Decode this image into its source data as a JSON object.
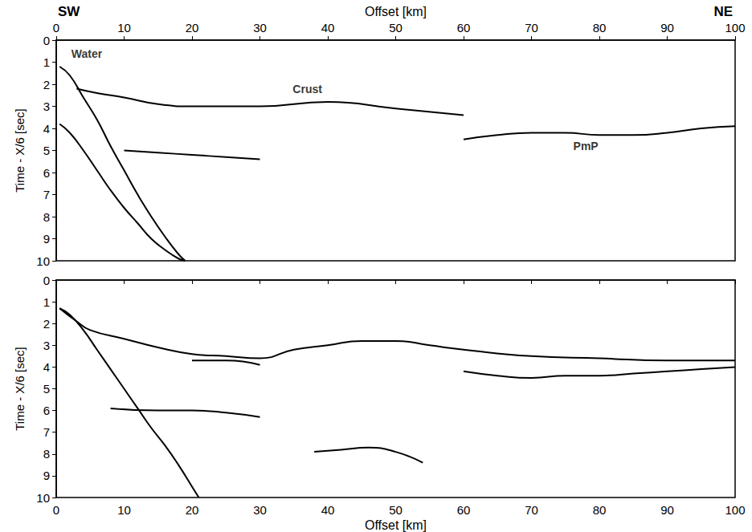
{
  "chart_data": [
    {
      "type": "line",
      "direction_labels": [
        "SW",
        "NE"
      ],
      "xlabel": "Offset [km]",
      "ylabel": "Time - X/6 [sec]",
      "xlim": [
        0,
        100
      ],
      "xticks": [
        0,
        10,
        20,
        30,
        40,
        50,
        60,
        70,
        80,
        90,
        100
      ],
      "ylim": [
        0,
        10
      ],
      "yticks": [
        0,
        1,
        2,
        3,
        4,
        5,
        6,
        7,
        8,
        9,
        10
      ],
      "annotations": [
        {
          "text": "Water",
          "x": 4.5,
          "y": 0.6
        },
        {
          "text": "Crust",
          "x": 37,
          "y": 2.2
        },
        {
          "text": "PmP",
          "x": 78,
          "y": 4.8
        }
      ],
      "series": [
        {
          "color": "#000000",
          "x": [
            0.5,
            2,
            4,
            6,
            8,
            10,
            12,
            14,
            16,
            18,
            19
          ],
          "values": [
            1.2,
            1.6,
            2.6,
            3.6,
            4.8,
            5.9,
            7.0,
            8.0,
            8.9,
            9.7,
            10.0
          ]
        },
        {
          "color": "#000000",
          "x": [
            0.5,
            2,
            4,
            6,
            8,
            10,
            12,
            14,
            16,
            18,
            19
          ],
          "values": [
            3.8,
            4.2,
            5.0,
            5.9,
            6.8,
            7.6,
            8.3,
            9.0,
            9.5,
            9.9,
            10.0
          ]
        },
        {
          "color": "#000000",
          "x": [
            3,
            6,
            10,
            15,
            20,
            30,
            40,
            50,
            60
          ],
          "values": [
            2.2,
            2.4,
            2.6,
            2.9,
            3.0,
            3.0,
            2.8,
            3.1,
            3.4
          ]
        },
        {
          "color": "#000000",
          "x": [
            10,
            15,
            20,
            25,
            30
          ],
          "values": [
            5.0,
            5.1,
            5.2,
            5.3,
            5.4
          ]
        },
        {
          "color": "#000000",
          "x": [
            60,
            65,
            70,
            75,
            80,
            85,
            90,
            95,
            100
          ],
          "values": [
            4.5,
            4.3,
            4.2,
            4.2,
            4.3,
            4.3,
            4.2,
            4.0,
            3.9
          ]
        }
      ]
    },
    {
      "type": "line",
      "xlabel": "Offset [km]",
      "ylabel": "Time - X/6 [sec]",
      "xlim": [
        0,
        100
      ],
      "xticks": [
        0,
        10,
        20,
        30,
        40,
        50,
        60,
        70,
        80,
        90,
        100
      ],
      "ylim": [
        0,
        10
      ],
      "yticks": [
        0,
        1,
        2,
        3,
        4,
        5,
        6,
        7,
        8,
        9,
        10
      ],
      "series": [
        {
          "color": "#000000",
          "x": [
            0.5,
            2,
            4,
            6,
            8,
            10,
            12,
            14,
            16,
            18,
            20,
            21
          ],
          "values": [
            1.3,
            1.6,
            2.3,
            3.2,
            4.1,
            5.0,
            5.9,
            6.8,
            7.6,
            8.5,
            9.5,
            10.0
          ]
        },
        {
          "color": "#000000",
          "x": [
            0.5,
            3,
            5,
            10,
            15,
            20,
            25,
            30,
            35,
            40,
            45,
            50,
            55,
            60,
            70,
            80,
            90,
            100
          ],
          "values": [
            1.3,
            1.9,
            2.3,
            2.7,
            3.1,
            3.4,
            3.5,
            3.6,
            3.2,
            3.0,
            2.8,
            2.8,
            3.0,
            3.2,
            3.5,
            3.6,
            3.7,
            3.7
          ]
        },
        {
          "color": "#000000",
          "x": [
            20,
            25,
            30
          ],
          "values": [
            3.7,
            3.7,
            3.9
          ]
        },
        {
          "color": "#000000",
          "x": [
            8,
            15,
            20,
            25,
            30
          ],
          "values": [
            5.9,
            6.0,
            6.0,
            6.1,
            6.3
          ]
        },
        {
          "color": "#000000",
          "x": [
            38,
            42,
            46,
            50,
            54
          ],
          "values": [
            7.9,
            7.8,
            7.7,
            7.9,
            8.4
          ]
        },
        {
          "color": "#000000",
          "x": [
            60,
            65,
            70,
            75,
            80,
            85,
            90,
            95,
            100
          ],
          "values": [
            4.2,
            4.4,
            4.5,
            4.4,
            4.4,
            4.3,
            4.2,
            4.1,
            4.0
          ]
        }
      ]
    }
  ]
}
